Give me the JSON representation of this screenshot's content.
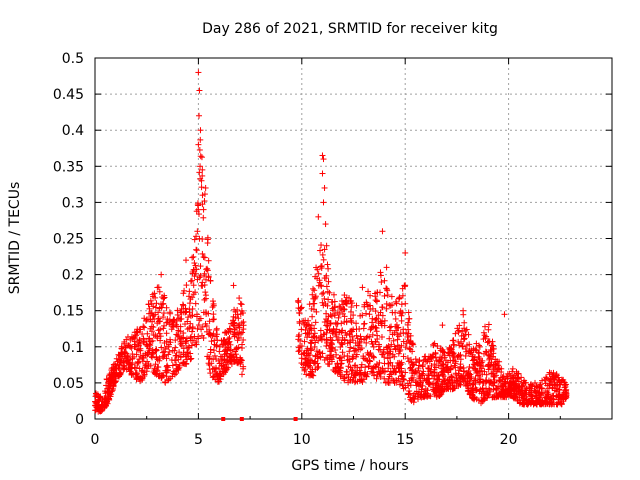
{
  "chart_data": {
    "type": "scatter",
    "title": "Day 286 of 2021, SRMTID for receiver kitg",
    "xlabel": "GPS time / hours",
    "ylabel": "SRMTID / TECUs",
    "xlim": [
      0,
      25
    ],
    "ylim": [
      0,
      0.5
    ],
    "xticks": [
      0,
      5,
      10,
      15,
      20
    ],
    "xtick_labels": [
      "0",
      "5",
      "10",
      "15",
      "20"
    ],
    "yticks": [
      0,
      0.05,
      0.1,
      0.15,
      0.2,
      0.25,
      0.3,
      0.35,
      0.4,
      0.45,
      0.5
    ],
    "ytick_labels": [
      "0",
      "0.05",
      "0.1",
      "0.15",
      "0.2",
      "0.25",
      "0.3",
      "0.35",
      "0.4",
      "0.45",
      "0.5"
    ],
    "grid": true,
    "marker": "plus",
    "color": "#ff0000",
    "zero_marks_x": [
      6.2,
      7.1,
      9.7
    ],
    "envelope": {
      "x": [
        0,
        0.3,
        0.6,
        1.0,
        1.4,
        1.8,
        2.2,
        2.6,
        3.0,
        3.4,
        3.8,
        4.2,
        4.6,
        4.9,
        5.1,
        5.3,
        5.6,
        6.0,
        6.4,
        6.8,
        7.1,
        7.2
      ],
      "low": [
        0.01,
        0.01,
        0.02,
        0.05,
        0.07,
        0.06,
        0.05,
        0.07,
        0.06,
        0.05,
        0.06,
        0.07,
        0.08,
        0.1,
        0.12,
        0.1,
        0.06,
        0.05,
        0.07,
        0.08,
        0.06,
        0.06
      ],
      "high": [
        0.04,
        0.03,
        0.06,
        0.08,
        0.11,
        0.12,
        0.13,
        0.16,
        0.19,
        0.17,
        0.14,
        0.17,
        0.2,
        0.28,
        0.4,
        0.32,
        0.2,
        0.1,
        0.13,
        0.16,
        0.18,
        0.17
      ]
    },
    "envelope2": {
      "x": [
        9.8,
        10.2,
        10.6,
        11.0,
        11.4,
        11.8,
        12.2,
        12.6,
        13.0,
        13.4,
        13.8,
        14.2,
        14.6,
        15.0,
        15.4,
        15.8,
        16.2,
        16.6,
        17.0,
        17.4,
        17.8,
        18.2,
        18.6,
        19.0,
        19.4,
        19.8,
        20.2,
        20.6,
        21.0,
        21.4,
        21.8,
        22.2,
        22.6,
        22.8
      ],
      "low": [
        0.09,
        0.06,
        0.06,
        0.08,
        0.07,
        0.06,
        0.05,
        0.05,
        0.05,
        0.06,
        0.05,
        0.05,
        0.05,
        0.04,
        0.02,
        0.03,
        0.03,
        0.03,
        0.04,
        0.04,
        0.05,
        0.03,
        0.02,
        0.03,
        0.03,
        0.03,
        0.03,
        0.02,
        0.02,
        0.02,
        0.02,
        0.02,
        0.02,
        0.03
      ],
      "high": [
        0.17,
        0.14,
        0.19,
        0.28,
        0.18,
        0.16,
        0.18,
        0.16,
        0.19,
        0.17,
        0.22,
        0.18,
        0.16,
        0.19,
        0.1,
        0.08,
        0.1,
        0.11,
        0.09,
        0.12,
        0.15,
        0.1,
        0.11,
        0.14,
        0.09,
        0.06,
        0.07,
        0.06,
        0.05,
        0.05,
        0.06,
        0.07,
        0.06,
        0.05
      ]
    },
    "spikes": [
      {
        "x": 5.0,
        "y": 0.48
      },
      {
        "x": 5.05,
        "y": 0.455
      },
      {
        "x": 5.03,
        "y": 0.42
      },
      {
        "x": 5.1,
        "y": 0.4
      },
      {
        "x": 5.0,
        "y": 0.38
      },
      {
        "x": 5.08,
        "y": 0.35
      },
      {
        "x": 5.15,
        "y": 0.33
      },
      {
        "x": 5.2,
        "y": 0.31
      },
      {
        "x": 5.35,
        "y": 0.32
      },
      {
        "x": 5.25,
        "y": 0.29
      },
      {
        "x": 4.95,
        "y": 0.26
      },
      {
        "x": 11.0,
        "y": 0.365
      },
      {
        "x": 11.05,
        "y": 0.36
      },
      {
        "x": 11.0,
        "y": 0.34
      },
      {
        "x": 11.1,
        "y": 0.32
      },
      {
        "x": 11.05,
        "y": 0.3
      },
      {
        "x": 10.8,
        "y": 0.28
      },
      {
        "x": 11.15,
        "y": 0.27
      },
      {
        "x": 11.2,
        "y": 0.24
      },
      {
        "x": 13.9,
        "y": 0.26
      },
      {
        "x": 15.0,
        "y": 0.23
      },
      {
        "x": 14.1,
        "y": 0.21
      },
      {
        "x": 3.2,
        "y": 0.2
      },
      {
        "x": 4.4,
        "y": 0.22
      },
      {
        "x": 6.7,
        "y": 0.185
      },
      {
        "x": 17.8,
        "y": 0.15
      },
      {
        "x": 19.8,
        "y": 0.145
      },
      {
        "x": 16.8,
        "y": 0.13
      }
    ]
  }
}
